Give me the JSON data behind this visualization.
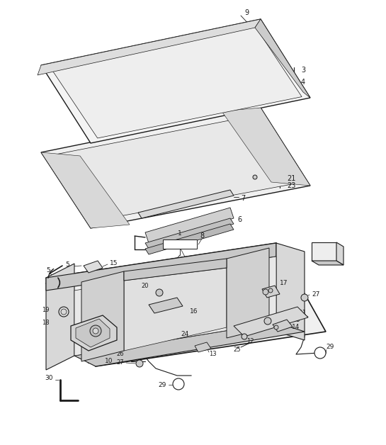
{
  "bg_color": "#ffffff",
  "line_color": "#1a1a1a",
  "fig_width": 5.45,
  "fig_height": 6.28,
  "dpi": 100
}
